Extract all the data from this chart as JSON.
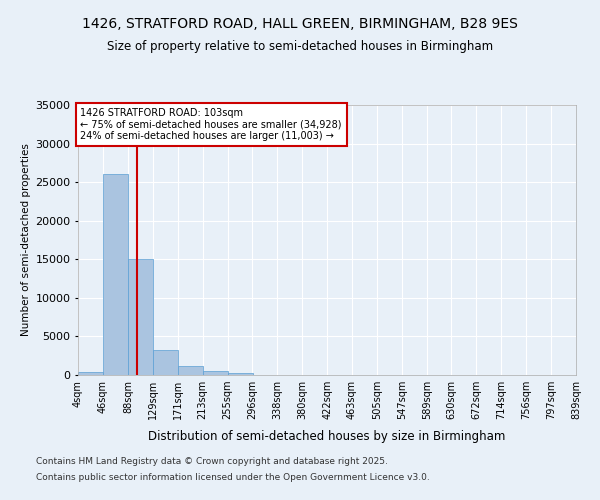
{
  "title1": "1426, STRATFORD ROAD, HALL GREEN, BIRMINGHAM, B28 9ES",
  "title2": "Size of property relative to semi-detached houses in Birmingham",
  "xlabel": "Distribution of semi-detached houses by size in Birmingham",
  "ylabel": "Number of semi-detached properties",
  "annotation_title": "1426 STRATFORD ROAD: 103sqm",
  "annotation_line1": "← 75% of semi-detached houses are smaller (34,928)",
  "annotation_line2": "24% of semi-detached houses are larger (11,003) →",
  "footer1": "Contains HM Land Registry data © Crown copyright and database right 2025.",
  "footer2": "Contains public sector information licensed under the Open Government Licence v3.0.",
  "property_size": 103,
  "bar_edges": [
    4,
    46,
    88,
    129,
    171,
    213,
    255,
    296,
    338,
    380,
    422,
    463,
    505,
    547,
    589,
    630,
    672,
    714,
    756,
    797,
    839
  ],
  "bar_labels": [
    "4sqm",
    "46sqm",
    "88sqm",
    "129sqm",
    "171sqm",
    "213sqm",
    "255sqm",
    "296sqm",
    "338sqm",
    "380sqm",
    "422sqm",
    "463sqm",
    "505sqm",
    "547sqm",
    "589sqm",
    "630sqm",
    "672sqm",
    "714sqm",
    "756sqm",
    "797sqm",
    "839sqm"
  ],
  "bar_values": [
    400,
    26100,
    15100,
    3250,
    1200,
    480,
    200,
    50,
    10,
    5,
    3,
    2,
    1,
    0,
    0,
    0,
    0,
    0,
    0,
    0
  ],
  "bar_color": "#aac4e0",
  "bar_edge_color": "#5a9fd4",
  "vline_color": "#cc0000",
  "vline_x": 103,
  "ylim": [
    0,
    35000
  ],
  "yticks": [
    0,
    5000,
    10000,
    15000,
    20000,
    25000,
    30000,
    35000
  ],
  "bg_color": "#e8f0f8",
  "plot_bg_color": "#e8f0f8",
  "grid_color": "#ffffff",
  "annotation_box_color": "#ffffff",
  "annotation_box_edge": "#cc0000"
}
